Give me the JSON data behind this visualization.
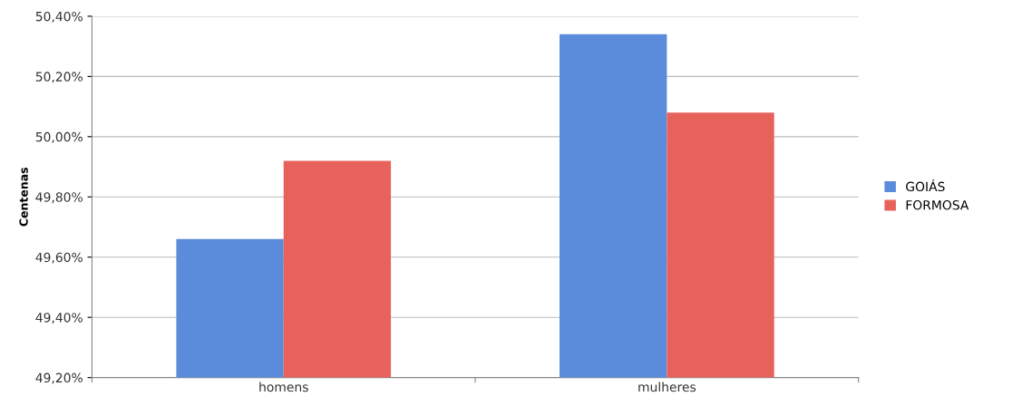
{
  "chart_data": {
    "type": "bar",
    "ylabel": "Centenas",
    "categories": [
      "homens",
      "mulheres"
    ],
    "series": [
      {
        "name": "GOIÁS",
        "color": "#5b8bdb",
        "values": [
          49.66,
          50.34
        ]
      },
      {
        "name": "FORMOSA",
        "color": "#e8625c",
        "values": [
          49.92,
          50.08
        ]
      }
    ],
    "ylim": [
      49.2,
      50.4
    ],
    "yticks": [
      {
        "value": 49.2,
        "label": "49,20%"
      },
      {
        "value": 49.4,
        "label": "49,40%"
      },
      {
        "value": 49.6,
        "label": "49,60%"
      },
      {
        "value": 49.8,
        "label": "49,80%"
      },
      {
        "value": 50.0,
        "label": "50,00%"
      },
      {
        "value": 50.2,
        "label": "50,20%"
      },
      {
        "value": 50.4,
        "label": "50,40%"
      }
    ],
    "grid": "y",
    "legend": "right"
  }
}
